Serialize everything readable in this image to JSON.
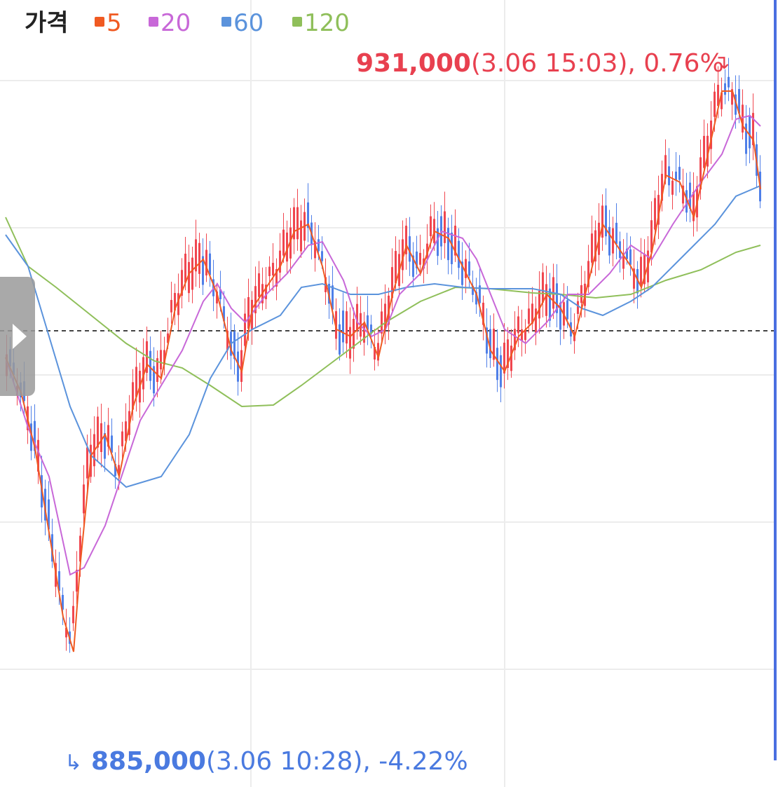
{
  "legend": {
    "title": "가격",
    "items": [
      {
        "label": "5",
        "color": "#f05a22"
      },
      {
        "label": "20",
        "color": "#c868d8"
      },
      {
        "label": "60",
        "color": "#5b93dc"
      },
      {
        "label": "120",
        "color": "#8fbf5a"
      }
    ]
  },
  "high": {
    "price": "931,000",
    "detail": "(3.06 15:03), 0.76%"
  },
  "low": {
    "price": "885,000",
    "detail": "(3.06 10:28), -4.22%"
  }
}
